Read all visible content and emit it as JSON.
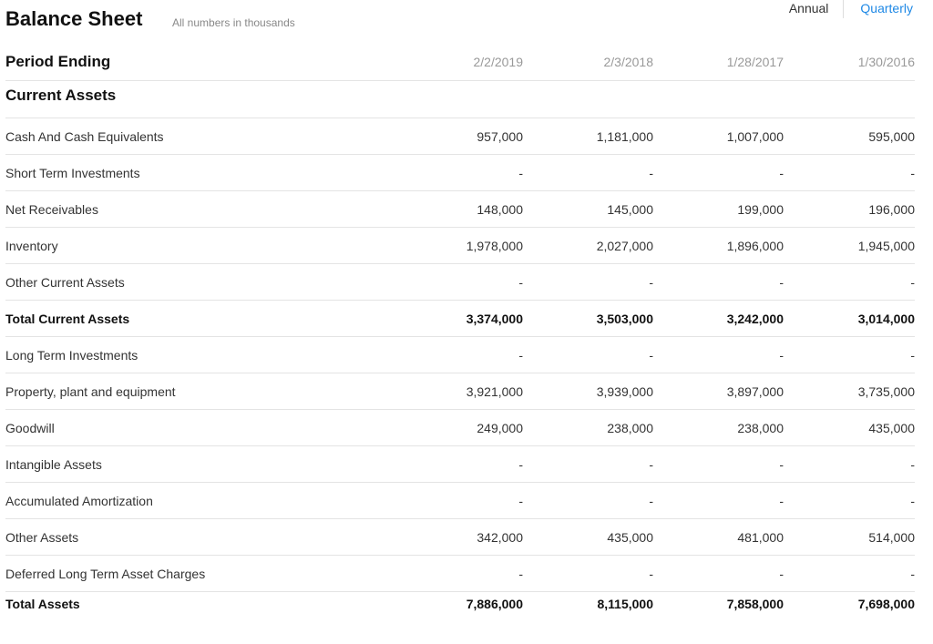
{
  "header": {
    "title": "Balance Sheet",
    "subtitle": "All numbers in thousands",
    "toggle": {
      "annual": "Annual",
      "quarterly": "Quarterly"
    }
  },
  "table": {
    "period_label": "Period Ending",
    "periods": [
      "2/2/2019",
      "2/3/2018",
      "1/28/2017",
      "1/30/2016"
    ],
    "section_label": "Current Assets",
    "rows": [
      {
        "label": "Cash And Cash Equivalents",
        "values": [
          "957,000",
          "1,181,000",
          "1,007,000",
          "595,000"
        ]
      },
      {
        "label": "Short Term Investments",
        "values": [
          "-",
          "-",
          "-",
          "-"
        ]
      },
      {
        "label": "Net Receivables",
        "values": [
          "148,000",
          "145,000",
          "199,000",
          "196,000"
        ]
      },
      {
        "label": "Inventory",
        "values": [
          "1,978,000",
          "2,027,000",
          "1,896,000",
          "1,945,000"
        ]
      },
      {
        "label": "Other Current Assets",
        "values": [
          "-",
          "-",
          "-",
          "-"
        ]
      },
      {
        "label": "Total Current Assets",
        "values": [
          "3,374,000",
          "3,503,000",
          "3,242,000",
          "3,014,000"
        ]
      },
      {
        "label": "Long Term Investments",
        "values": [
          "-",
          "-",
          "-",
          "-"
        ]
      },
      {
        "label": "Property, plant and equipment",
        "values": [
          "3,921,000",
          "3,939,000",
          "3,897,000",
          "3,735,000"
        ]
      },
      {
        "label": "Goodwill",
        "values": [
          "249,000",
          "238,000",
          "238,000",
          "435,000"
        ]
      },
      {
        "label": "Intangible Assets",
        "values": [
          "-",
          "-",
          "-",
          "-"
        ]
      },
      {
        "label": "Accumulated Amortization",
        "values": [
          "-",
          "-",
          "-",
          "-"
        ]
      },
      {
        "label": "Other Assets",
        "values": [
          "342,000",
          "435,000",
          "481,000",
          "514,000"
        ]
      },
      {
        "label": "Deferred Long Term Asset Charges",
        "values": [
          "-",
          "-",
          "-",
          "-"
        ]
      },
      {
        "label": "Total Assets",
        "values": [
          "7,886,000",
          "8,115,000",
          "7,858,000",
          "7,698,000"
        ]
      }
    ]
  }
}
